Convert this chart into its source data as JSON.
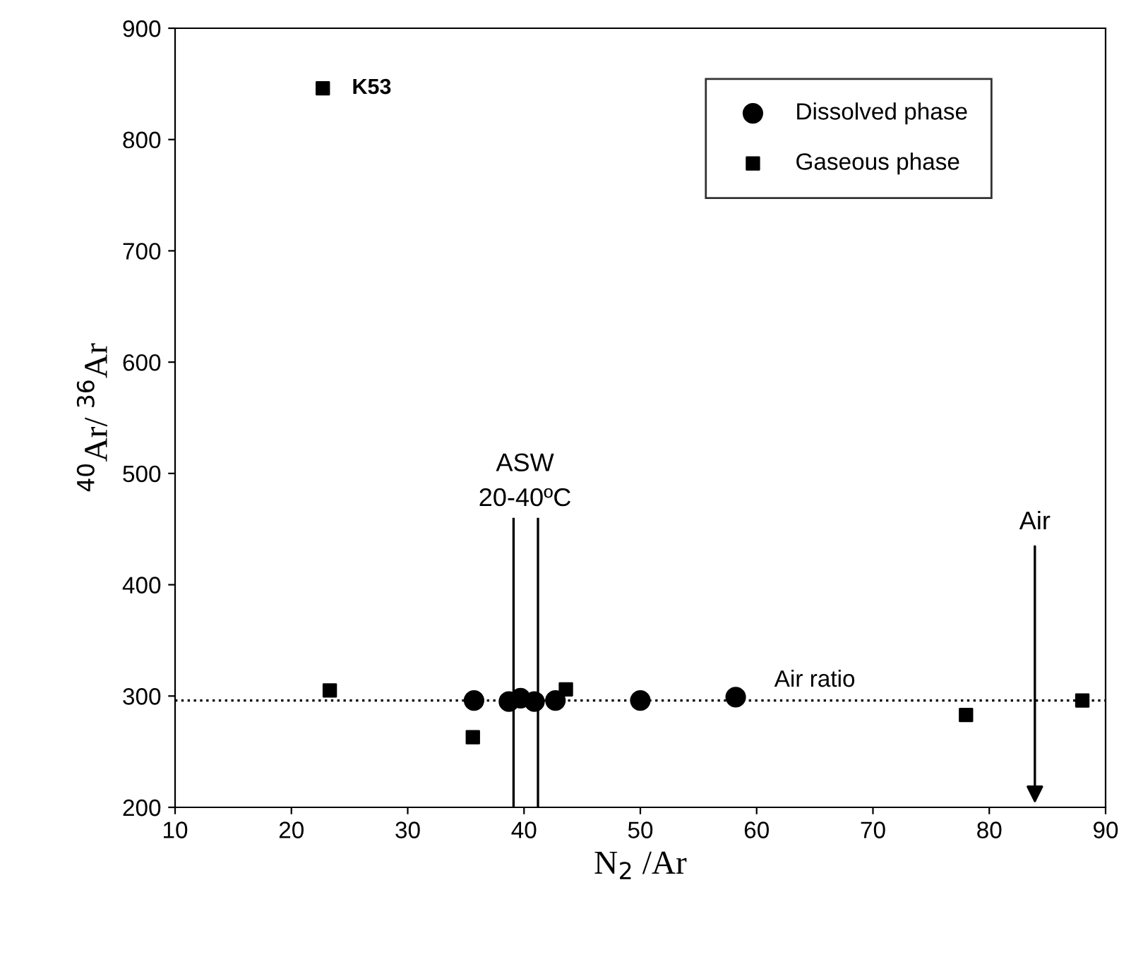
{
  "chart_data": {
    "type": "scatter",
    "xlabel": "N$_{2}$ /Ar",
    "ylabel": "$^{40}$Ar/ $^{36}$Ar",
    "xlim": [
      10,
      90
    ],
    "xticks": [
      10,
      20,
      30,
      40,
      50,
      60,
      70,
      80,
      90
    ],
    "ylim": [
      200,
      900
    ],
    "yticks": [
      200,
      300,
      400,
      500,
      600,
      700,
      800,
      900
    ],
    "grid": false,
    "legend": "top right",
    "series": [
      {
        "name": "Dissolved phase",
        "color": "#000000",
        "marker": "circle",
        "x": [
          35.7,
          38.7,
          39.7,
          40.9,
          42.7,
          50.0,
          58.2
        ],
        "values": [
          296,
          295,
          298,
          295,
          296,
          296,
          299
        ]
      },
      {
        "name": "Gaseous phase",
        "color": "#000000",
        "marker": "square",
        "x": [
          22.7,
          23.3,
          35.6,
          43.6,
          78.0,
          88.0
        ],
        "values": [
          846,
          305,
          263,
          306,
          283,
          296
        ]
      }
    ],
    "ref_lines": [
      {
        "axis": "y",
        "value": 296,
        "label": "Air ratio",
        "line_style": "dotted",
        "color": "#000000"
      },
      {
        "axis": "x",
        "value": 39.1,
        "line_style": "solid",
        "color": "#000000"
      },
      {
        "axis": "x",
        "value": 41.2,
        "line_style": "solid",
        "color": "#000000"
      }
    ],
    "annotations": [
      {
        "text": "K53",
        "x": 22.7,
        "y": 846
      },
      "ASW\n20-40ºC",
      "Air"
    ]
  }
}
